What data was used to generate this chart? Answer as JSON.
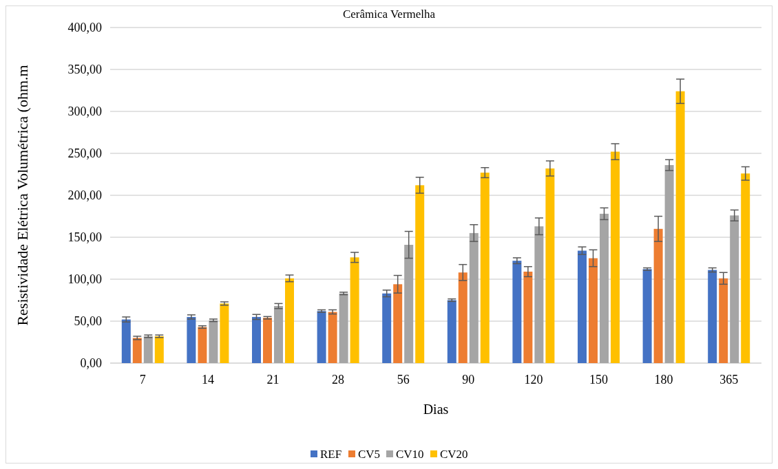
{
  "chart_data": {
    "type": "bar",
    "title": "Cerâmica Vermelha",
    "xlabel": "Dias",
    "ylabel": "Resistividade Elétrica Volumétrica (ohm.m",
    "categories": [
      "7",
      "14",
      "21",
      "28",
      "56",
      "90",
      "120",
      "150",
      "180",
      "365"
    ],
    "series": [
      {
        "name": "REF",
        "color": "#4472c4",
        "values": [
          52,
          55,
          55,
          62,
          83,
          75,
          122,
          134,
          112,
          111
        ],
        "errors": [
          3,
          2.5,
          3,
          1.5,
          4,
          1.5,
          3.5,
          4.5,
          1.5,
          2.5
        ]
      },
      {
        "name": "CV5",
        "color": "#ed7d31",
        "values": [
          30,
          43,
          54,
          61,
          94,
          108,
          109,
          125,
          160,
          101
        ],
        "errors": [
          2,
          1.5,
          1.5,
          2.5,
          10.5,
          9.5,
          6,
          10,
          15,
          7
        ]
      },
      {
        "name": "CV10",
        "color": "#a5a5a5",
        "values": [
          32,
          51,
          68,
          83,
          141,
          155,
          163,
          178,
          236,
          176
        ],
        "errors": [
          1.5,
          1.5,
          3,
          1.5,
          16,
          10,
          10,
          7,
          6.5,
          6.5
        ]
      },
      {
        "name": "CV20",
        "color": "#ffc000",
        "values": [
          32,
          71,
          101,
          126,
          212,
          227,
          232,
          252,
          324,
          226
        ],
        "errors": [
          1.5,
          2,
          4,
          6,
          9.5,
          6,
          9,
          9.5,
          14.5,
          8
        ]
      }
    ],
    "ylim": [
      0,
      400
    ],
    "yticks": [
      {
        "value": 0,
        "label": "0,00"
      },
      {
        "value": 50,
        "label": "50,00"
      },
      {
        "value": 100,
        "label": "100,00"
      },
      {
        "value": 150,
        "label": "150,00"
      },
      {
        "value": 200,
        "label": "200,00"
      },
      {
        "value": 250,
        "label": "250,00"
      },
      {
        "value": 300,
        "label": "300,00"
      },
      {
        "value": 350,
        "label": "350,00"
      },
      {
        "value": 400,
        "label": "400,00"
      }
    ],
    "grid": "y",
    "legend": "bottom"
  }
}
